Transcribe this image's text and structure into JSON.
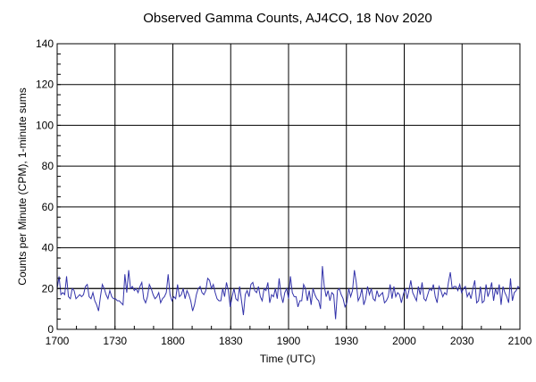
{
  "chart_data": {
    "type": "line",
    "title": "Observed Gamma Counts, AJ4CO, 18 Nov 2020",
    "xlabel": "Time (UTC)",
    "ylabel": "Counts per Minute (CPM), 1-minute sums",
    "xlim": [
      0,
      240
    ],
    "ylim": [
      0,
      140
    ],
    "grid": true,
    "x_ticks": [
      {
        "value": 0,
        "label": "1700"
      },
      {
        "value": 30,
        "label": "1730"
      },
      {
        "value": 60,
        "label": "1800"
      },
      {
        "value": 90,
        "label": "1830"
      },
      {
        "value": 120,
        "label": "1900"
      },
      {
        "value": 150,
        "label": "1930"
      },
      {
        "value": 180,
        "label": "2000"
      },
      {
        "value": 210,
        "label": "2030"
      },
      {
        "value": 240,
        "label": "2100"
      }
    ],
    "y_ticks": [
      0,
      20,
      40,
      60,
      80,
      100,
      120,
      140
    ],
    "reference_line": 20,
    "series": [
      {
        "color": "#3333aa",
        "values": [
          20,
          26,
          17,
          18,
          17,
          26,
          16,
          15,
          20,
          19,
          15,
          16,
          17,
          16,
          17,
          21,
          22,
          16,
          15,
          18,
          14,
          12,
          9,
          16,
          22,
          20,
          17,
          15,
          19,
          16,
          15,
          15,
          14,
          14,
          13,
          12,
          27,
          18,
          29,
          20,
          21,
          19,
          20,
          18,
          21,
          23,
          15,
          13,
          16,
          22,
          20,
          17,
          15,
          16,
          18,
          13,
          15,
          16,
          18,
          27,
          17,
          14,
          16,
          15,
          22,
          16,
          17,
          20,
          15,
          19,
          17,
          14,
          9,
          12,
          17,
          20,
          21,
          18,
          17,
          19,
          25,
          24,
          20,
          22,
          18,
          15,
          14,
          14,
          20,
          16,
          23,
          19,
          11,
          16,
          20,
          15,
          14,
          21,
          14,
          7,
          17,
          19,
          16,
          22,
          23,
          19,
          18,
          21,
          16,
          14,
          20,
          19,
          23,
          13,
          17,
          16,
          20,
          15,
          25,
          17,
          13,
          18,
          20,
          15,
          26,
          18,
          16,
          16,
          11,
          14,
          14,
          22,
          20,
          14,
          19,
          12,
          20,
          17,
          15,
          14,
          10,
          31,
          21,
          16,
          19,
          14,
          18,
          17,
          5,
          19,
          20,
          17,
          15,
          11,
          13,
          20,
          16,
          19,
          29,
          23,
          14,
          16,
          20,
          12,
          15,
          21,
          17,
          20,
          15,
          14,
          19,
          16,
          17,
          18,
          13,
          14,
          16,
          22,
          15,
          21,
          16,
          18,
          17,
          13,
          17,
          20,
          15,
          19,
          24,
          18,
          16,
          14,
          21,
          17,
          23,
          15,
          14,
          17,
          20,
          19,
          22,
          16,
          13,
          21,
          19,
          16,
          18,
          17,
          23,
          28,
          20,
          21,
          21,
          19,
          22,
          18,
          20,
          21,
          16,
          18,
          15,
          20,
          24,
          13,
          14,
          21,
          13,
          14,
          22,
          16,
          19,
          23,
          14,
          20,
          17,
          22,
          12,
          21,
          18,
          16,
          13,
          25,
          14,
          18,
          19,
          21,
          20
        ]
      }
    ]
  }
}
